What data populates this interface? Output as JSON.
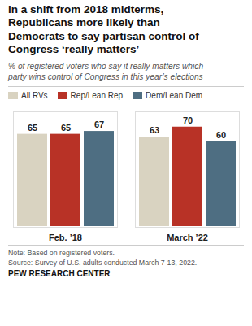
{
  "chart_data": {
    "type": "bar",
    "title": "In a shift from 2018 midterms,\nRepublicans more likely than\nDemocrats to say partisan control of\nCongress ‘really matters’",
    "subtitle": "% of registered voters who say it really matters which\nparty wins control of Congress in this year’s elections",
    "categories": [
      "Feb. ’18",
      "March ’22"
    ],
    "series": [
      {
        "name": "All RVs",
        "color": "#d9d3c1",
        "values": [
          65,
          63
        ]
      },
      {
        "name": "Rep/Lean Rep",
        "color": "#b83226",
        "values": [
          65,
          70
        ]
      },
      {
        "name": "Dem/Lean Dem",
        "color": "#4e6e82",
        "values": [
          67,
          60
        ]
      }
    ],
    "ylim": [
      0,
      80
    ],
    "grid": false,
    "legend": "top",
    "data_labels": true,
    "tick_labels": "x",
    "annotations": [
      "Note: Based on registered voters.\nSource: Survey of U.S. adults conducted March 7-13, 2022.",
      "PEW RESEARCH CENTER"
    ]
  }
}
